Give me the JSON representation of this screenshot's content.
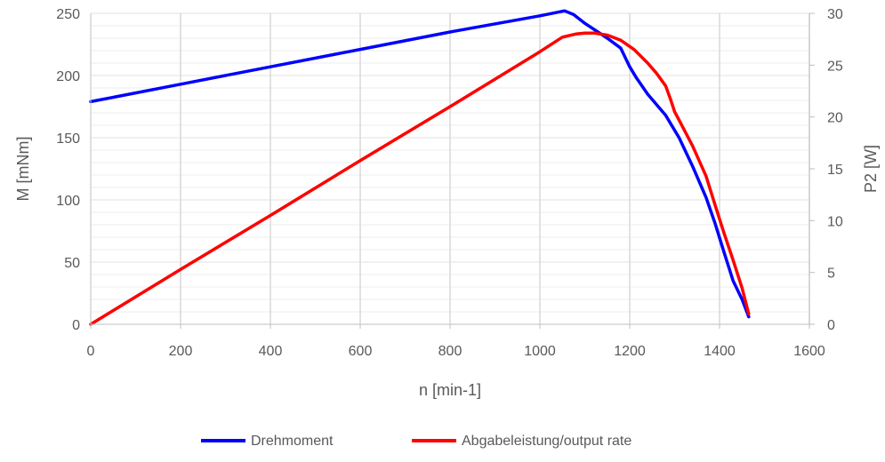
{
  "chart_data": {
    "type": "line",
    "title": "",
    "xlabel": "n [min-1]",
    "ylabel": "M [mNm]",
    "y2label": "P2 [W]",
    "xlim": [
      0,
      1600
    ],
    "xticks": [
      0,
      200,
      400,
      600,
      800,
      1000,
      1200,
      1400,
      1600
    ],
    "ylim": [
      0,
      250
    ],
    "yticks": [
      0,
      50,
      100,
      150,
      200,
      250
    ],
    "y2lim": [
      0,
      30
    ],
    "y2ticks": [
      0,
      5,
      10,
      15,
      20,
      25,
      30
    ],
    "grid": {
      "vertical": true,
      "horizontal_minor": true
    },
    "legend_position": "bottom",
    "series": [
      {
        "name": "Drehmoment",
        "axis": "left",
        "color": "#0000FF",
        "x": [
          0,
          200,
          400,
          600,
          800,
          1000,
          1055,
          1075,
          1100,
          1150,
          1180,
          1200,
          1215,
          1240,
          1280,
          1310,
          1340,
          1370,
          1390,
          1410,
          1430,
          1450,
          1465
        ],
        "y": [
          179,
          193,
          207,
          221,
          235,
          248,
          252,
          249,
          242,
          230,
          222,
          207,
          198,
          185,
          168,
          150,
          127,
          102,
          81,
          58,
          35,
          20,
          6
        ]
      },
      {
        "name": "Abgabeleistung/output rate",
        "axis": "right",
        "color": "#FF0000",
        "x": [
          0,
          200,
          400,
          600,
          800,
          1000,
          1050,
          1080,
          1100,
          1120,
          1150,
          1180,
          1210,
          1240,
          1260,
          1280,
          1290,
          1300,
          1310,
          1340,
          1370,
          1390,
          1410,
          1430,
          1450,
          1465
        ],
        "y": [
          0,
          5.3,
          10.5,
          15.8,
          21,
          26.3,
          27.7,
          28.0,
          28.1,
          28.1,
          27.9,
          27.4,
          26.5,
          25.2,
          24.2,
          23.0,
          21.8,
          20.5,
          19.7,
          17.2,
          14.3,
          11.5,
          8.8,
          6.2,
          3.5,
          1.0
        ]
      }
    ]
  }
}
